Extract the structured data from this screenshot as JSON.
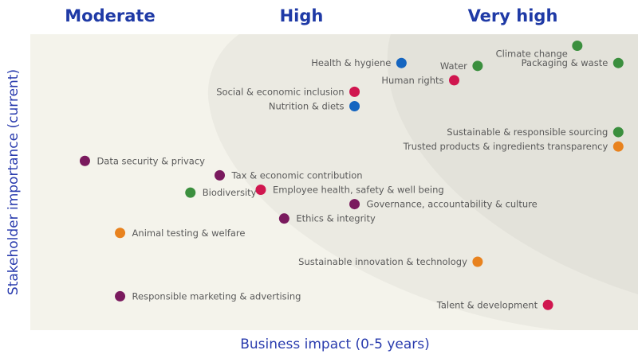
{
  "chart_data": {
    "type": "scatter",
    "title": "",
    "xlabel": "Business impact (0-5 years)",
    "ylabel": "Stakeholder importance (current)",
    "xlim": [
      0,
      100
    ],
    "ylim": [
      0,
      100
    ],
    "zones": [
      "Moderate",
      "High",
      "Very high"
    ],
    "colors": {
      "environment": "#3b8f3e",
      "health": "#1565c0",
      "social": "#d0164f",
      "governance": "#7a1a5e",
      "consumer": "#e8821e",
      "background": "#f4f3eb",
      "zone_high": "#ebeae2",
      "zone_very_high": "#e3e2da",
      "title_blue": "#1f3aa6"
    },
    "points": [
      {
        "label": "Climate change",
        "x": 91,
        "y": 96,
        "group": "environment",
        "label_side": "above-left"
      },
      {
        "label": "Packaging & waste",
        "x": 98,
        "y": 90,
        "group": "environment",
        "label_side": "left"
      },
      {
        "label": "Health & hygiene",
        "x": 61,
        "y": 90,
        "group": "health",
        "label_side": "left"
      },
      {
        "label": "Water",
        "x": 74,
        "y": 89,
        "group": "environment",
        "label_side": "left"
      },
      {
        "label": "Human rights",
        "x": 70,
        "y": 84,
        "group": "social",
        "label_side": "left"
      },
      {
        "label": "Social & economic inclusion",
        "x": 53,
        "y": 80,
        "group": "social",
        "label_side": "left"
      },
      {
        "label": "Nutrition & diets",
        "x": 53,
        "y": 75,
        "group": "health",
        "label_side": "left"
      },
      {
        "label": "Sustainable & responsible sourcing",
        "x": 98,
        "y": 66,
        "group": "environment",
        "label_side": "left"
      },
      {
        "label": "Trusted products & ingredients transparency",
        "x": 98,
        "y": 61,
        "group": "consumer",
        "label_side": "left"
      },
      {
        "label": "Data security & privacy",
        "x": 7,
        "y": 56,
        "group": "governance",
        "label_side": "right"
      },
      {
        "label": "Tax & economic contribution",
        "x": 30,
        "y": 51,
        "group": "governance",
        "label_side": "right"
      },
      {
        "label": "Employee health, safety & well being",
        "x": 37,
        "y": 46,
        "group": "social",
        "label_side": "right"
      },
      {
        "label": "Biodiversity",
        "x": 25,
        "y": 45,
        "group": "environment",
        "label_side": "right"
      },
      {
        "label": "Governance, accountability & culture",
        "x": 53,
        "y": 41,
        "group": "governance",
        "label_side": "right"
      },
      {
        "label": "Ethics & integrity",
        "x": 41,
        "y": 36,
        "group": "governance",
        "label_side": "right"
      },
      {
        "label": "Animal testing & welfare",
        "x": 13,
        "y": 31,
        "group": "consumer",
        "label_side": "right"
      },
      {
        "label": "Sustainable innovation & technology",
        "x": 74,
        "y": 21,
        "group": "consumer",
        "label_side": "left"
      },
      {
        "label": "Responsible marketing & advertising",
        "x": 13,
        "y": 9,
        "group": "governance",
        "label_side": "right"
      },
      {
        "label": "Talent & development",
        "x": 86,
        "y": 6,
        "group": "social",
        "label_side": "left"
      }
    ]
  }
}
